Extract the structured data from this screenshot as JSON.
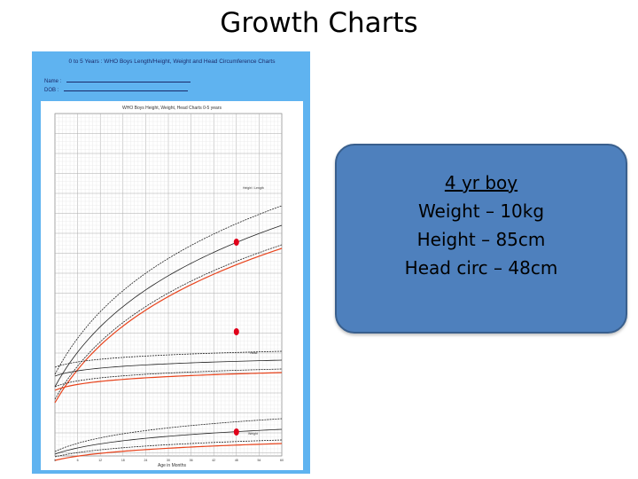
{
  "slide": {
    "title": "Growth Charts"
  },
  "chart": {
    "heading": "0 to 5 Years : WHO Boys Length/Height, Weight and Head Circumference Charts",
    "name_label": "Name :",
    "dob_label": "DOB :",
    "plot_title": "WHO Boys Height, Weight, Head Charts 0-5 years",
    "x_label": "Age in Months",
    "height_label": "Height / Length",
    "head_label": "Head",
    "weight_label": "Weight",
    "colors": {
      "frame": "#5fb3f0",
      "percentile": "#222222",
      "child": "#e8431c",
      "marker": "#e0001a"
    }
  },
  "chart_data": {
    "type": "line",
    "x": [
      0,
      6,
      12,
      18,
      24,
      30,
      36,
      42,
      48,
      54,
      60
    ],
    "xlabel": "Age in Months",
    "xlim": [
      0,
      60
    ],
    "series": [],
    "points": [
      {
        "x": 48,
        "y": 85,
        "group": "height"
      },
      {
        "x": 48,
        "y": 48,
        "group": "head"
      },
      {
        "x": 48,
        "y": 10,
        "group": "weight"
      }
    ]
  },
  "info": {
    "line1": "4 yr boy",
    "line2": "Weight – 10kg",
    "line3": "Height – 85cm",
    "line4": "Head circ – 48cm"
  }
}
